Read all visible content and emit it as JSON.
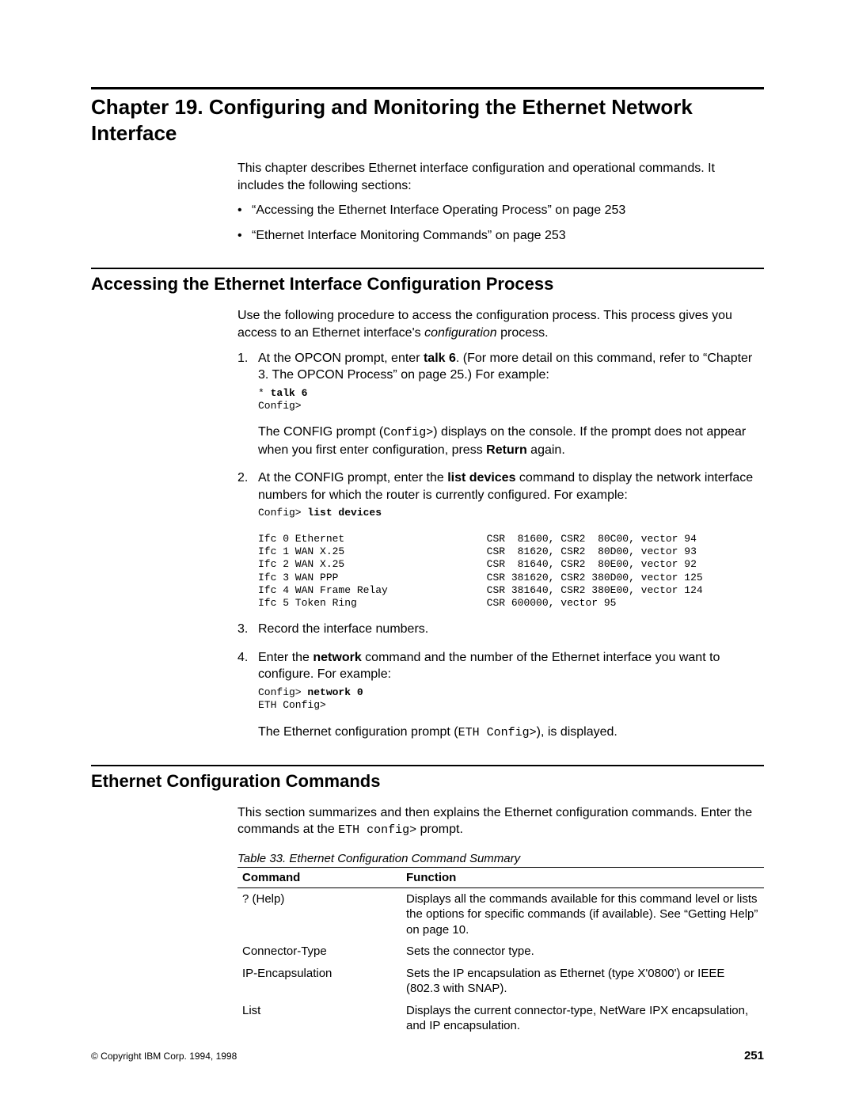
{
  "chapter_title": "Chapter 19. Configuring and Monitoring the Ethernet Network Interface",
  "intro_para": "This chapter describes Ethernet interface configuration and operational commands. It includes the following sections:",
  "intro_bullets": [
    "“Accessing the Ethernet Interface Operating Process” on page 253",
    "“Ethernet Interface Monitoring Commands” on page 253"
  ],
  "section1_title": "Accessing the Ethernet Interface Configuration Process",
  "section1_intro_a": "Use the following procedure to access the configuration process. This process gives you access to an Ethernet interface's ",
  "section1_intro_italic": "configuration",
  "section1_intro_b": " process.",
  "step1_a": "At the OPCON prompt, enter ",
  "step1_bold": "talk 6",
  "step1_b": ". (For more detail on this command, refer to “Chapter 3. The OPCON Process” on page 25.) For example:",
  "code1_line1_prefix": "* ",
  "code1_line1_cmd": "talk 6",
  "code1_line2": "Config>",
  "step1_follow_a": "The CONFIG prompt (",
  "step1_follow_mono": "Config>",
  "step1_follow_b": ") displays on the console. If the prompt does not appear when you first enter configuration, press ",
  "step1_follow_bold": "Return",
  "step1_follow_c": " again.",
  "step2_a": "At the CONFIG prompt, enter the ",
  "step2_bold": "list devices",
  "step2_b": " command to display the network interface numbers for which the router is currently configured. For example:",
  "code2_prompt": "Config> ",
  "code2_cmd": "list devices",
  "code2_body": "Ifc 0 Ethernet                       CSR  81600, CSR2  80C00, vector 94\nIfc 1 WAN X.25                       CSR  81620, CSR2  80D00, vector 93\nIfc 2 WAN X.25                       CSR  81640, CSR2  80E00, vector 92\nIfc 3 WAN PPP                        CSR 381620, CSR2 380D00, vector 125\nIfc 4 WAN Frame Relay                CSR 381640, CSR2 380E00, vector 124\nIfc 5 Token Ring                     CSR 600000, vector 95",
  "step3": "Record the interface numbers.",
  "step4_a": "Enter the ",
  "step4_bold": "network",
  "step4_b": " command and the number of the Ethernet interface you want to configure. For example:",
  "code3_prompt": "Config> ",
  "code3_cmd": "network 0",
  "code3_line2": "ETH Config>",
  "step4_follow_a": "The Ethernet configuration prompt (",
  "step4_follow_mono": "ETH Config>",
  "step4_follow_b": "), is displayed.",
  "section2_title": "Ethernet Configuration Commands",
  "section2_intro_a": "This section summarizes and then explains the Ethernet configuration commands. Enter the commands at the ",
  "section2_intro_mono": "ETH config>",
  "section2_intro_b": " prompt.",
  "table_caption": "Table 33. Ethernet Configuration Command Summary",
  "table_headers": {
    "col1": "Command",
    "col2": "Function"
  },
  "table_rows": [
    {
      "cmd": "? (Help)",
      "func": "Displays all the commands available for this command level or lists the options for specific commands (if available). See “Getting Help” on page 10."
    },
    {
      "cmd": "Connector-Type",
      "func": "Sets the connector type."
    },
    {
      "cmd": "IP-Encapsulation",
      "func": "Sets the IP encapsulation as Ethernet (type X'0800') or IEEE (802.3 with SNAP)."
    },
    {
      "cmd": "List",
      "func": "Displays the current connector-type, NetWare IPX encapsulation, and IP encapsulation."
    }
  ],
  "footer_copyright": "© Copyright IBM Corp. 1994, 1998",
  "footer_page": "251"
}
